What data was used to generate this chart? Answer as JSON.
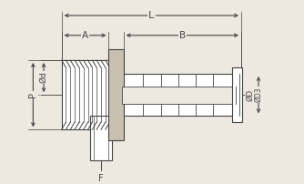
{
  "bg_color": "#ede8e0",
  "line_color": "#444444",
  "labels": {
    "L": "L",
    "A": "A",
    "B": "B",
    "P": "P",
    "Od": "Ød",
    "OD": "ØD",
    "OD3": "ØD3",
    "F": "F"
  },
  "dims": {
    "fig_w": 3.34,
    "fig_h": 2.02,
    "dpi": 100
  }
}
